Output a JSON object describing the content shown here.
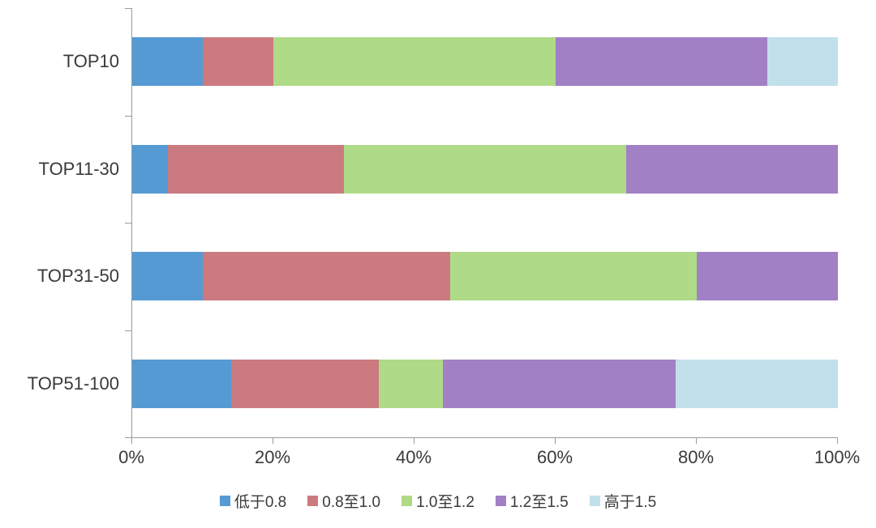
{
  "chart_data": {
    "type": "bar",
    "orientation": "horizontal",
    "stacked": true,
    "title": "",
    "xlabel": "",
    "ylabel": "",
    "categories": [
      "TOP10",
      "TOP11-30",
      "TOP31-50",
      "TOP51-100"
    ],
    "series": [
      {
        "name": "低于0.8",
        "color": "#569ad3",
        "values": [
          10,
          5,
          10,
          14
        ]
      },
      {
        "name": "0.8至1.0",
        "color": "#cb7a80",
        "values": [
          10,
          25,
          35,
          21
        ]
      },
      {
        "name": "1.0至1.2",
        "color": "#afda87",
        "values": [
          40,
          40,
          35,
          9
        ]
      },
      {
        "name": "1.2至1.5",
        "color": "#a280c5",
        "values": [
          30,
          30,
          20,
          33
        ]
      },
      {
        "name": "高于1.5",
        "color": "#c1e0ec",
        "values": [
          10,
          0,
          0,
          23
        ]
      }
    ],
    "x_axis": {
      "min": 0,
      "max": 100,
      "tick_labels": [
        "0%",
        "20%",
        "40%",
        "60%",
        "80%",
        "100%"
      ]
    },
    "legend_position": "bottom",
    "grid": false,
    "axis_color": "#9a9a9a",
    "text_color": "#3a3a3a",
    "background": "#ffffff"
  }
}
